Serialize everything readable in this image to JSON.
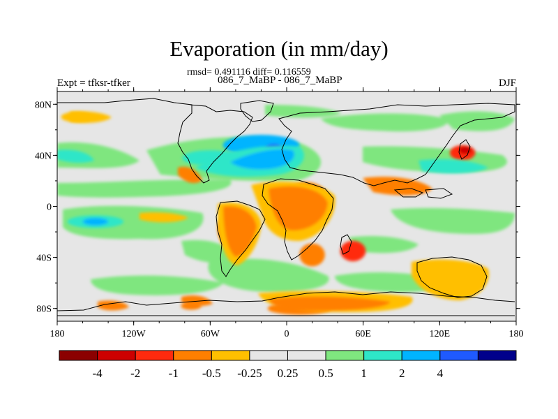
{
  "title": "Evaporation (in mm/day)",
  "stats": "rmsd= 0.491116 diff= 0.116559",
  "subtitle": "086_7_MaBP - 086_7_MaBP",
  "left_label": "Expt = tfksr-tfker",
  "right_label": "DJF",
  "map": {
    "lon_range": [
      -180,
      180
    ],
    "lat_range": [
      -90,
      90
    ],
    "lon_ticks": [
      {
        "value": -180,
        "label": "180"
      },
      {
        "value": -120,
        "label": "120W"
      },
      {
        "value": -60,
        "label": "60W"
      },
      {
        "value": 0,
        "label": "0"
      },
      {
        "value": 60,
        "label": "60E"
      },
      {
        "value": 120,
        "label": "120E"
      },
      {
        "value": 180,
        "label": "180"
      }
    ],
    "lat_ticks": [
      {
        "value": 80,
        "label": "80N"
      },
      {
        "value": 40,
        "label": "40N"
      },
      {
        "value": 0,
        "label": "0"
      },
      {
        "value": -40,
        "label": "40S"
      },
      {
        "value": -80,
        "label": "80S"
      }
    ],
    "background_color": "#e6e6e6"
  },
  "colorbar": {
    "colors": [
      "#8b0000",
      "#cd0000",
      "#ff2a0e",
      "#ff7f00",
      "#ffbf00",
      "#e6e6e6",
      "#e6e6e6",
      "#7fe67f",
      "#2ee6c8",
      "#00b4ff",
      "#1f5aff",
      "#00008b"
    ],
    "labels": [
      "-4",
      "-2",
      "-1",
      "-0.5",
      "-0.25",
      "0.25",
      "0.5",
      "1",
      "2",
      "4"
    ]
  },
  "chart_data": {
    "type": "heatmap",
    "title": "Evaporation (in mm/day)",
    "xlabel": "",
    "ylabel": "",
    "xlim": [
      -180,
      180
    ],
    "ylim": [
      -90,
      90
    ],
    "levels": [
      -4,
      -2,
      -1,
      -0.5,
      -0.25,
      0.25,
      0.5,
      1,
      2,
      4
    ],
    "regions": [
      {
        "lon": -20,
        "lat": 48,
        "rx": 30,
        "ry": 8,
        "level": 3,
        "color": "#00b4ff"
      },
      {
        "lon": -10,
        "lat": 45,
        "rx": 7,
        "ry": 4,
        "level": 5,
        "color": "#1f5aff"
      },
      {
        "lon": -60,
        "lat": 38,
        "rx": 22,
        "ry": 6,
        "level": 2,
        "color": "#2ee6c8"
      },
      {
        "lon": 138,
        "lat": 42,
        "rx": 10,
        "ry": 6,
        "level": -3,
        "color": "#ff2a0e"
      },
      {
        "lon": 140,
        "lat": 44,
        "rx": 5,
        "ry": 3,
        "level": -4,
        "color": "#cd0000"
      },
      {
        "lon": -150,
        "lat": -12,
        "rx": 22,
        "ry": 5,
        "level": 2,
        "color": "#2ee6c8"
      },
      {
        "lon": -150,
        "lat": -12,
        "rx": 10,
        "ry": 3,
        "level": 3,
        "color": "#00b4ff"
      },
      {
        "lon": 15,
        "lat": 5,
        "rx": 18,
        "ry": 14,
        "level": -3,
        "color": "#ff7f00"
      },
      {
        "lon": -40,
        "lat": -18,
        "rx": 14,
        "ry": 16,
        "level": -3,
        "color": "#ff7f00"
      },
      {
        "lon": 52,
        "lat": -35,
        "rx": 10,
        "ry": 8,
        "level": -3,
        "color": "#ff2a0e"
      },
      {
        "lon": 20,
        "lat": -38,
        "rx": 10,
        "ry": 9,
        "level": -2,
        "color": "#ff7f00"
      },
      {
        "lon": 130,
        "lat": -55,
        "rx": 22,
        "ry": 10,
        "level": -2,
        "color": "#ffbf00"
      },
      {
        "lon": 10,
        "lat": -80,
        "rx": 25,
        "ry": 5,
        "level": -2,
        "color": "#ff7f00"
      },
      {
        "lon": -75,
        "lat": -78,
        "rx": 8,
        "ry": 3,
        "level": -2,
        "color": "#ff7f00"
      },
      {
        "lon": -165,
        "lat": 70,
        "rx": 12,
        "ry": 4,
        "level": -1,
        "color": "#ffbf00"
      }
    ]
  }
}
